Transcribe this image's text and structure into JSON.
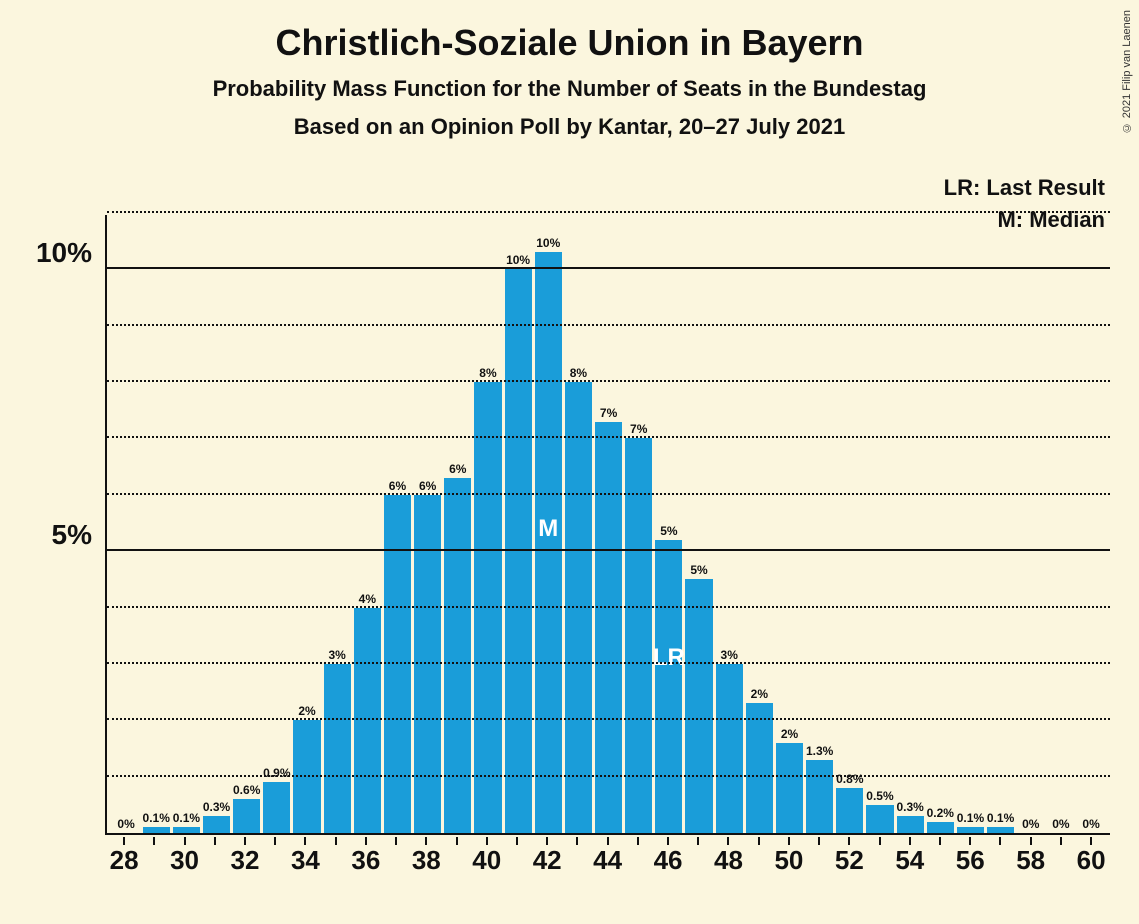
{
  "copyright": "© 2021 Filip van Laenen",
  "title": "Christlich-Soziale Union in Bayern",
  "subtitle1": "Probability Mass Function for the Number of Seats in the Bundestag",
  "subtitle2": "Based on an Opinion Poll by Kantar, 20–27 July 2021",
  "legend": {
    "lr": "LR: Last Result",
    "m": "M: Median"
  },
  "chart": {
    "type": "bar",
    "bar_color": "#1a9dd9",
    "background_color": "#fbf6de",
    "axis_color": "#111111",
    "y_max": 11,
    "y_major": [
      {
        "value": 5,
        "label": "5%"
      },
      {
        "value": 10,
        "label": "10%"
      }
    ],
    "y_minor": [
      1,
      2,
      3,
      4,
      6,
      7,
      8,
      9,
      11
    ],
    "x_ticks": [
      28,
      30,
      32,
      34,
      36,
      38,
      40,
      42,
      44,
      46,
      48,
      50,
      52,
      54,
      56,
      58,
      60
    ],
    "bars": [
      {
        "x": 28,
        "value": 0.0,
        "label": "0%"
      },
      {
        "x": 29,
        "value": 0.1,
        "label": "0.1%"
      },
      {
        "x": 30,
        "value": 0.1,
        "label": "0.1%"
      },
      {
        "x": 31,
        "value": 0.3,
        "label": "0.3%"
      },
      {
        "x": 32,
        "value": 0.6,
        "label": "0.6%"
      },
      {
        "x": 33,
        "value": 0.9,
        "label": "0.9%"
      },
      {
        "x": 34,
        "value": 2.0,
        "label": "2%"
      },
      {
        "x": 35,
        "value": 3.0,
        "label": "3%"
      },
      {
        "x": 36,
        "value": 4.0,
        "label": "4%"
      },
      {
        "x": 37,
        "value": 6.0,
        "label": "6%"
      },
      {
        "x": 38,
        "value": 6.0,
        "label": "6%"
      },
      {
        "x": 39,
        "value": 6.3,
        "label": "6%"
      },
      {
        "x": 40,
        "value": 8.0,
        "label": "8%"
      },
      {
        "x": 41,
        "value": 10.0,
        "label": "10%"
      },
      {
        "x": 42,
        "value": 10.3,
        "label": "10%",
        "marker": "M",
        "marker_pos": 50
      },
      {
        "x": 43,
        "value": 8.0,
        "label": "8%"
      },
      {
        "x": 44,
        "value": 7.3,
        "label": "7%"
      },
      {
        "x": 45,
        "value": 7.0,
        "label": "7%"
      },
      {
        "x": 46,
        "value": 5.2,
        "label": "5%",
        "marker": "LR",
        "marker_pos": 55
      },
      {
        "x": 47,
        "value": 4.5,
        "label": "5%"
      },
      {
        "x": 48,
        "value": 3.0,
        "label": "3%"
      },
      {
        "x": 49,
        "value": 2.3,
        "label": "2%"
      },
      {
        "x": 50,
        "value": 1.6,
        "label": "2%"
      },
      {
        "x": 51,
        "value": 1.3,
        "label": "1.3%"
      },
      {
        "x": 52,
        "value": 0.8,
        "label": "0.8%"
      },
      {
        "x": 53,
        "value": 0.5,
        "label": "0.5%"
      },
      {
        "x": 54,
        "value": 0.3,
        "label": "0.3%"
      },
      {
        "x": 55,
        "value": 0.2,
        "label": "0.2%"
      },
      {
        "x": 56,
        "value": 0.1,
        "label": "0.1%"
      },
      {
        "x": 57,
        "value": 0.1,
        "label": "0.1%"
      },
      {
        "x": 58,
        "value": 0.0,
        "label": "0%"
      },
      {
        "x": 59,
        "value": 0.0,
        "label": "0%"
      },
      {
        "x": 60,
        "value": 0.0,
        "label": "0%"
      }
    ]
  }
}
